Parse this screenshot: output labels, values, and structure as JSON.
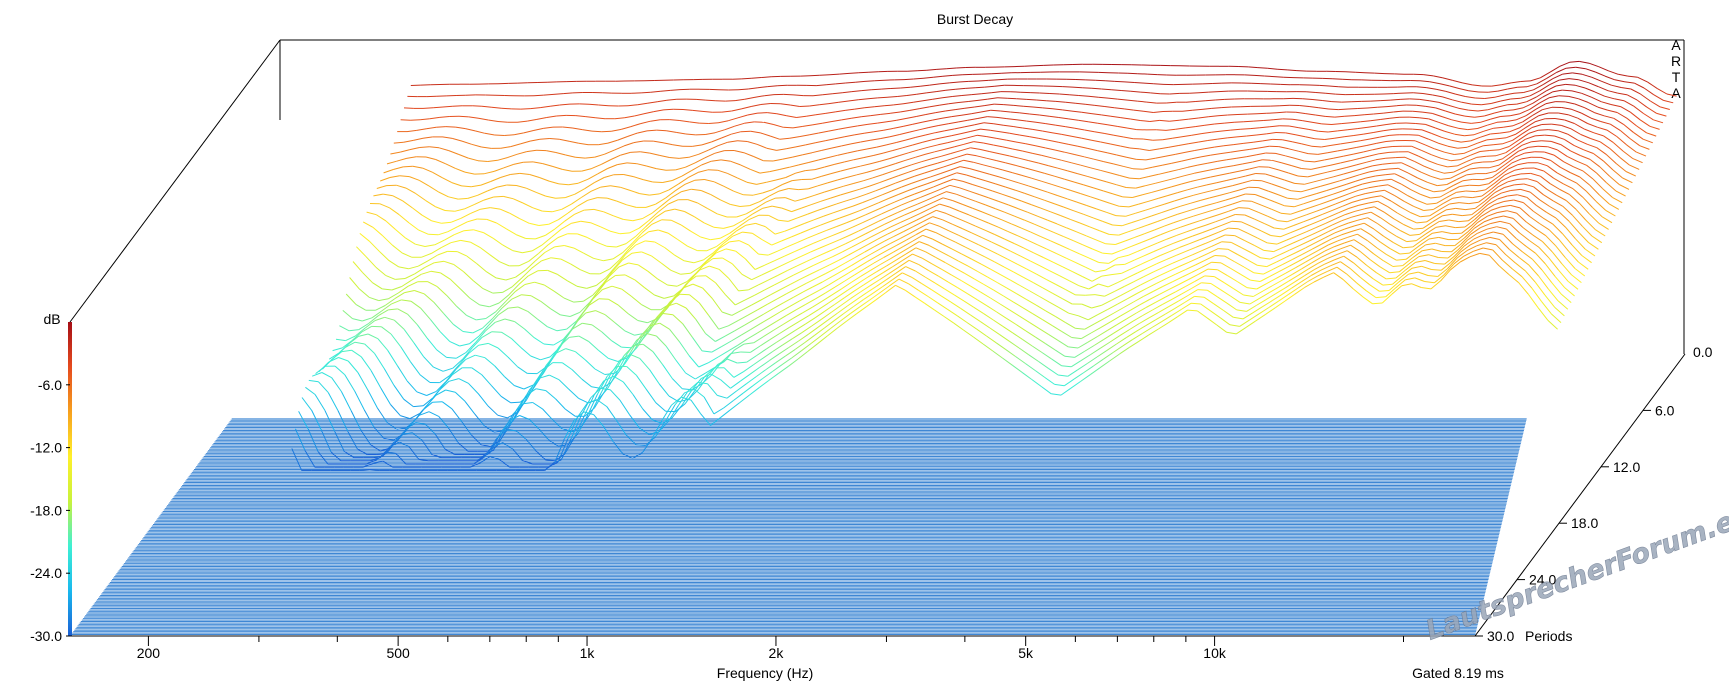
{
  "chart_data": {
    "type": "waterfall-3d",
    "title": "Burst Decay",
    "brand_letters": [
      "A",
      "R",
      "T",
      "A"
    ],
    "xlabel": "Frequency (Hz)",
    "x_scale": "log",
    "xlim": [
      150,
      26000
    ],
    "x_ticks": [
      {
        "value": 200,
        "label": "200"
      },
      {
        "value": 500,
        "label": "500"
      },
      {
        "value": 1000,
        "label": "1k"
      },
      {
        "value": 2000,
        "label": "2k"
      },
      {
        "value": 5000,
        "label": "5k"
      },
      {
        "value": 10000,
        "label": "10k"
      }
    ],
    "x_minor_ticks": [
      300,
      400,
      600,
      700,
      800,
      900,
      3000,
      4000,
      6000,
      7000,
      8000,
      9000,
      20000
    ],
    "zlabel": "dB",
    "zlim": [
      -30,
      0
    ],
    "z_ticks": [
      -6.0,
      -12.0,
      -18.0,
      -24.0,
      -30.0
    ],
    "z_tick_labels": [
      "-6.0",
      "-12.0",
      "-18.0",
      "-24.0",
      "-30.0"
    ],
    "right_z_tick_label": "0.0",
    "depth_label": "Periods",
    "depth_lim": [
      0,
      30
    ],
    "depth_ticks": [
      6.0,
      12.0,
      18.0,
      24.0,
      30.0
    ],
    "depth_tick_labels": [
      "6.0",
      "12.0",
      "18.0",
      "24.0",
      "30.0"
    ],
    "footer_note": "Gated 8.19 ms",
    "watermark": "LautsprecherForum.eu",
    "colormap": [
      "#1a5fd6",
      "#19b8ee",
      "#3ef0d4",
      "#c8f23c",
      "#fff02a",
      "#f7a01e",
      "#e54a1e",
      "#a50e16"
    ],
    "floor_color": "#3f87d4",
    "front_edge_color": "#1f6fd6",
    "slice_count": 36,
    "base_response": {
      "freq_hz": [
        150,
        200,
        300,
        500,
        800,
        1000,
        1500,
        2000,
        3000,
        5000,
        7000,
        10000,
        13000,
        15000,
        18000,
        22000,
        26000
      ],
      "level_db": [
        -3.0,
        -2.6,
        -2.3,
        -2.0,
        -1.8,
        -1.5,
        -1.0,
        -0.6,
        -0.3,
        -0.5,
        -1.0,
        -1.3,
        -2.5,
        -2.0,
        0.0,
        -1.5,
        -3.5
      ]
    },
    "resonances": [
      {
        "freq_hz": 2300,
        "peak_db": -12.0,
        "persist_periods": 30
      },
      {
        "freq_hz": 6800,
        "peak_db": -14.0,
        "persist_periods": 30
      },
      {
        "freq_hz": 11500,
        "peak_db": -9.0,
        "persist_periods": 30
      },
      {
        "freq_hz": 13000,
        "peak_db": -12.0,
        "persist_periods": 30
      },
      {
        "freq_hz": 15000,
        "peak_db": -10.0,
        "persist_periods": 30
      },
      {
        "freq_hz": 20000,
        "peak_db": -8.0,
        "persist_periods": 30
      }
    ]
  }
}
